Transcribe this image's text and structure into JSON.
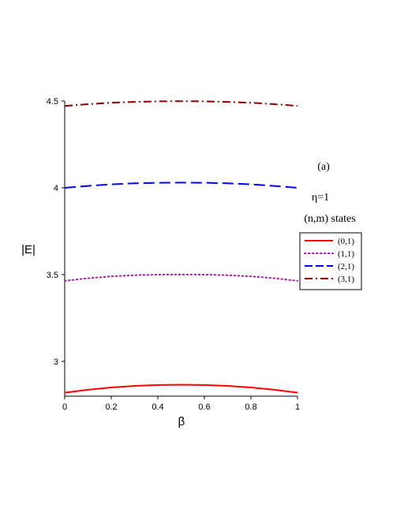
{
  "chart_data": {
    "type": "line",
    "title": "",
    "xlabel": "β",
    "ylabel": "|E|",
    "xlim": [
      0,
      1
    ],
    "ylim": [
      2.8,
      4.5
    ],
    "xticks": [
      0,
      0.2,
      0.4,
      0.6,
      0.8,
      1
    ],
    "xtick_labels": [
      "0",
      "0.2",
      "0.4",
      "0.6",
      "0.8",
      "1"
    ],
    "yticks": [
      3,
      3.5,
      4,
      4.5
    ],
    "ytick_labels": [
      "3",
      "3.5",
      "4",
      "4.5"
    ],
    "grid": false,
    "annotations": [
      "(a)",
      "η=1",
      "(n,m) states"
    ],
    "legend_position": "right",
    "x": [
      0,
      0.1,
      0.2,
      0.3,
      0.4,
      0.5,
      0.6,
      0.7,
      0.8,
      0.9,
      1
    ],
    "series": [
      {
        "name": "(0,1)",
        "color": "#ff0000",
        "style": "solid",
        "values": [
          2.82,
          2.837,
          2.85,
          2.859,
          2.864,
          2.866,
          2.864,
          2.859,
          2.85,
          2.837,
          2.82
        ]
      },
      {
        "name": "(1,1)",
        "color": "#a020a0",
        "style": "dotted",
        "values": [
          3.464,
          3.479,
          3.49,
          3.497,
          3.5,
          3.501,
          3.5,
          3.497,
          3.49,
          3.479,
          3.464
        ]
      },
      {
        "name": "(2,1)",
        "color": "#0000ff",
        "style": "dashed",
        "values": [
          4.0,
          4.011,
          4.02,
          4.026,
          4.029,
          4.03,
          4.029,
          4.026,
          4.02,
          4.011,
          4.0
        ]
      },
      {
        "name": "(3,1)",
        "color": "#8b0000",
        "style": "dashdot",
        "values": [
          4.472,
          4.482,
          4.49,
          4.495,
          4.498,
          4.499,
          4.498,
          4.495,
          4.49,
          4.482,
          4.472
        ]
      }
    ]
  }
}
